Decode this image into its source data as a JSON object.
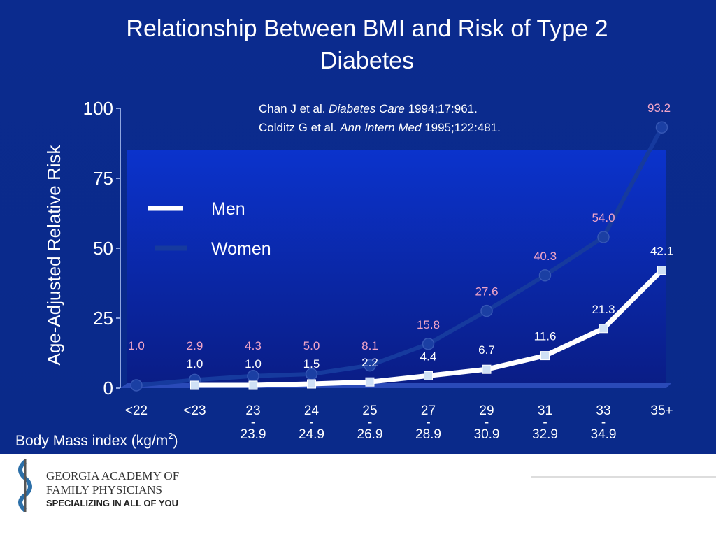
{
  "chart_data": {
    "type": "line",
    "title": [
      "Relationship Between BMI and Risk of Type 2",
      "Diabetes"
    ],
    "y_label": "Age-Adjusted Relative Risk",
    "x_label": [
      "Body Mass index (kg/m",
      "2",
      ")"
    ],
    "annotations": [
      [
        "Chan J et al. ",
        "Diabetes Care",
        " 1994;17:961."
      ],
      [
        "Colditz G et al. ",
        "Ann Intern Med",
        " 1995;122:481."
      ]
    ],
    "categories": [
      [
        "<22"
      ],
      [
        "<23"
      ],
      [
        "23",
        "-",
        "23.9"
      ],
      [
        "24",
        "-",
        "24.9"
      ],
      [
        "25",
        "-",
        "26.9"
      ],
      [
        "27",
        "-",
        "28.9"
      ],
      [
        "29",
        "-",
        "30.9"
      ],
      [
        "31",
        "-",
        "32.9"
      ],
      [
        "33",
        "-",
        "34.9"
      ],
      [
        "35+"
      ]
    ],
    "series": [
      {
        "name": "Men",
        "color": "#ffffff",
        "label_color": "#ffffff",
        "values": [
          null,
          1.0,
          1.0,
          1.5,
          2.2,
          4.4,
          6.7,
          11.6,
          21.3,
          42.1
        ],
        "value_labels": [
          null,
          "1.0",
          "1.0",
          "1.5",
          "2.2",
          "4.4",
          "6.7",
          "11.6",
          "21.3",
          "42.1"
        ]
      },
      {
        "name": "Women",
        "color": "#163a9e",
        "label_color": "#f2a6c8",
        "values": [
          1.0,
          2.9,
          4.3,
          5.0,
          8.1,
          15.8,
          27.6,
          40.3,
          54.0,
          93.2
        ],
        "value_labels": [
          "1.0",
          "2.9",
          "4.3",
          "5.0",
          "8.1",
          "15.8",
          "27.6",
          "40.3",
          "54.0",
          "93.2"
        ]
      }
    ],
    "ylim": [
      0,
      100
    ],
    "yticks": [
      0,
      25,
      50,
      75,
      100
    ]
  },
  "footer": {
    "logo_lines": [
      "GEORGIA ACADEMY OF",
      "FAMILY PHYSICIANS",
      "SPECIALIZING IN ALL OF YOU"
    ]
  }
}
